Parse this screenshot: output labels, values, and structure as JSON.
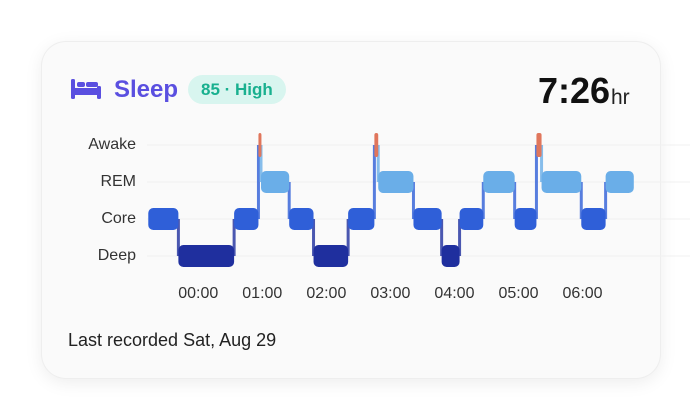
{
  "header": {
    "title": "Sleep",
    "badge": "85 · High",
    "duration": "7:26",
    "unit": "hr"
  },
  "footer": "Last recorded Sat, Aug 29",
  "chart_data": {
    "type": "hypnogram",
    "stages": [
      "Awake",
      "REM",
      "Core",
      "Deep"
    ],
    "colors": [
      "#e0765c",
      "#6aaee8",
      "#2f5fd8",
      "#1f2f9e"
    ],
    "xlim": [
      -0.8,
      6.85
    ],
    "xticks": [
      {
        "value": 0,
        "label": "00:00"
      },
      {
        "value": 1,
        "label": "01:00"
      },
      {
        "value": 2,
        "label": "02:00"
      },
      {
        "value": 3,
        "label": "03:00"
      },
      {
        "value": 4,
        "label": "04:00"
      },
      {
        "value": 5,
        "label": "05:00"
      },
      {
        "value": 6,
        "label": "06:00"
      }
    ],
    "segments": [
      {
        "stage": "Core",
        "start": -0.78,
        "end": -0.31
      },
      {
        "stage": "Deep",
        "start": -0.31,
        "end": 0.56
      },
      {
        "stage": "Core",
        "start": 0.56,
        "end": 0.94
      },
      {
        "stage": "Awake",
        "start": 0.94,
        "end": 0.98
      },
      {
        "stage": "REM",
        "start": 0.98,
        "end": 1.42
      },
      {
        "stage": "Core",
        "start": 1.42,
        "end": 1.8
      },
      {
        "stage": "Deep",
        "start": 1.8,
        "end": 2.34
      },
      {
        "stage": "Core",
        "start": 2.34,
        "end": 2.75
      },
      {
        "stage": "Awake",
        "start": 2.75,
        "end": 2.81
      },
      {
        "stage": "REM",
        "start": 2.81,
        "end": 3.36
      },
      {
        "stage": "Core",
        "start": 3.36,
        "end": 3.8
      },
      {
        "stage": "Deep",
        "start": 3.8,
        "end": 4.08
      },
      {
        "stage": "Core",
        "start": 4.08,
        "end": 4.45
      },
      {
        "stage": "REM",
        "start": 4.45,
        "end": 4.94
      },
      {
        "stage": "Core",
        "start": 4.94,
        "end": 5.28
      },
      {
        "stage": "Awake",
        "start": 5.28,
        "end": 5.36
      },
      {
        "stage": "REM",
        "start": 5.36,
        "end": 5.98
      },
      {
        "stage": "Core",
        "start": 5.98,
        "end": 6.36
      },
      {
        "stage": "REM",
        "start": 6.36,
        "end": 6.8
      }
    ]
  }
}
